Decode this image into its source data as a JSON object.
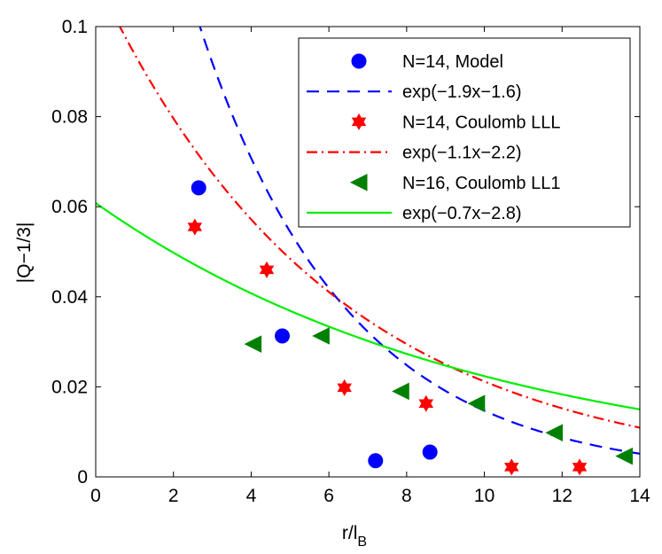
{
  "chart_data": {
    "type": "scatter",
    "title": "",
    "xlabel": "r/l",
    "xlabel_subscript": "B",
    "ylabel": "|Q−1/3|",
    "xlim": [
      0,
      14
    ],
    "ylim": [
      0,
      0.1
    ],
    "xticks": [
      0,
      2,
      4,
      6,
      8,
      10,
      12,
      14
    ],
    "yticks": [
      0,
      0.02,
      0.04,
      0.06,
      0.08,
      0.1
    ],
    "xtick_labels": [
      "0",
      "2",
      "4",
      "6",
      "8",
      "10",
      "12",
      "14"
    ],
    "ytick_labels": [
      "0",
      "0.02",
      "0.04",
      "0.06",
      "0.08",
      "0.1"
    ],
    "grid": false,
    "legend_position": "top-right",
    "series": [
      {
        "name": "N=14, Model",
        "kind": "points",
        "marker": "circle",
        "color": "#0000ff",
        "x": [
          2.65,
          4.8,
          7.2,
          8.6
        ],
        "y": [
          0.0642,
          0.0313,
          0.0036,
          0.0055
        ]
      },
      {
        "name": "exp(−1.9x−1.6)",
        "kind": "fit",
        "dash": "dashed",
        "color": "#0000ff",
        "function": "exp",
        "a": 1.9,
        "b": 1.6,
        "x_scale": 7.25
      },
      {
        "name": "N=14, Coulomb LLL",
        "kind": "points",
        "marker": "hexagram",
        "color": "#ff0000",
        "x": [
          2.55,
          4.4,
          6.4,
          8.5,
          10.7,
          12.45
        ],
        "y": [
          0.0555,
          0.046,
          0.0198,
          0.0163,
          0.0022,
          0.0022
        ]
      },
      {
        "name": "exp(−1.1x−2.2)",
        "kind": "fit",
        "dash": "dashdot",
        "color": "#ff0000",
        "function": "exp",
        "a": 1.1,
        "b": 2.2,
        "x_scale": 6.65
      },
      {
        "name": "N=16, Coulomb LL1",
        "kind": "points",
        "marker": "triangle-left",
        "color": "#008000",
        "x": [
          4.05,
          5.8,
          7.85,
          9.8,
          11.8,
          13.6
        ],
        "y": [
          0.0295,
          0.0313,
          0.019,
          0.0163,
          0.0098,
          0.0046
        ]
      },
      {
        "name": "exp(−0.7x−2.8)",
        "kind": "fit",
        "dash": "solid",
        "color": "#00ee00",
        "function": "exp",
        "a": 0.7,
        "b": 2.8,
        "x_scale": 7.0
      }
    ]
  }
}
